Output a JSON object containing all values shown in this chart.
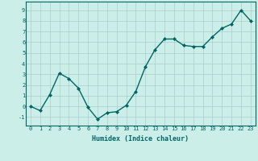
{
  "x": [
    0,
    1,
    2,
    3,
    4,
    5,
    6,
    7,
    8,
    9,
    10,
    11,
    12,
    13,
    14,
    15,
    16,
    17,
    18,
    19,
    20,
    21,
    22,
    23
  ],
  "y": [
    0.0,
    -0.4,
    1.1,
    3.1,
    2.6,
    1.7,
    -0.1,
    -1.2,
    -0.6,
    -0.5,
    0.1,
    1.4,
    3.7,
    5.3,
    6.3,
    6.3,
    5.7,
    5.6,
    5.6,
    6.5,
    7.3,
    7.7,
    9.0,
    8.0
  ],
  "line_color": "#006666",
  "marker": "D",
  "markersize": 2.0,
  "linewidth": 1.0,
  "xlabel": "Humidex (Indice chaleur)",
  "xlabel_fontsize": 6,
  "xlabel_fontweight": "bold",
  "xlabel_color": "#006666",
  "ylabel_ticks": [
    -1,
    0,
    1,
    2,
    3,
    4,
    5,
    6,
    7,
    8,
    9
  ],
  "xtick_labels": [
    "0",
    "1",
    "2",
    "3",
    "4",
    "5",
    "6",
    "7",
    "8",
    "9",
    "10",
    "11",
    "12",
    "13",
    "14",
    "15",
    "16",
    "17",
    "18",
    "19",
    "20",
    "21",
    "22",
    "23"
  ],
  "xlim": [
    -0.5,
    23.5
  ],
  "ylim": [
    -1.8,
    9.8
  ],
  "bg_color": "#cceee8",
  "grid_color": "#aacccc",
  "tick_fontsize": 5.0,
  "fig_bg_color": "#cceee8"
}
